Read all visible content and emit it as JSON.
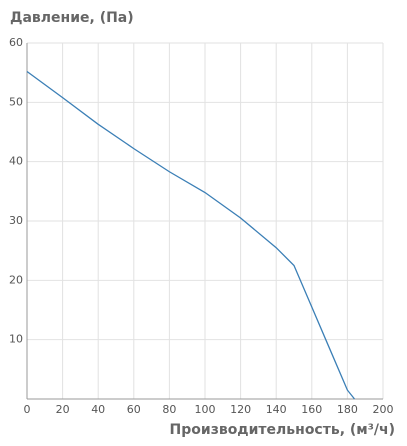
{
  "chart_data": {
    "type": "line",
    "title": "Давление, (Па)",
    "x_label": "Производительность, (м³/ч)",
    "x": [
      0,
      20,
      40,
      60,
      80,
      100,
      120,
      140,
      150,
      160,
      170,
      180,
      184
    ],
    "series": [
      {
        "name": "Давление",
        "color": "#3b7fb6",
        "values": [
          55.2,
          50.8,
          46.3,
          42.2,
          38.3,
          34.8,
          30.5,
          25.5,
          22.5,
          15.5,
          8.5,
          1.5,
          0
        ]
      }
    ],
    "xlim": [
      0,
      200
    ],
    "xticks": [
      0,
      20,
      40,
      60,
      80,
      100,
      120,
      140,
      160,
      180,
      200
    ],
    "ylim": [
      0,
      60
    ],
    "yticks": [
      10,
      20,
      30,
      40,
      50,
      60
    ],
    "grid": true
  }
}
